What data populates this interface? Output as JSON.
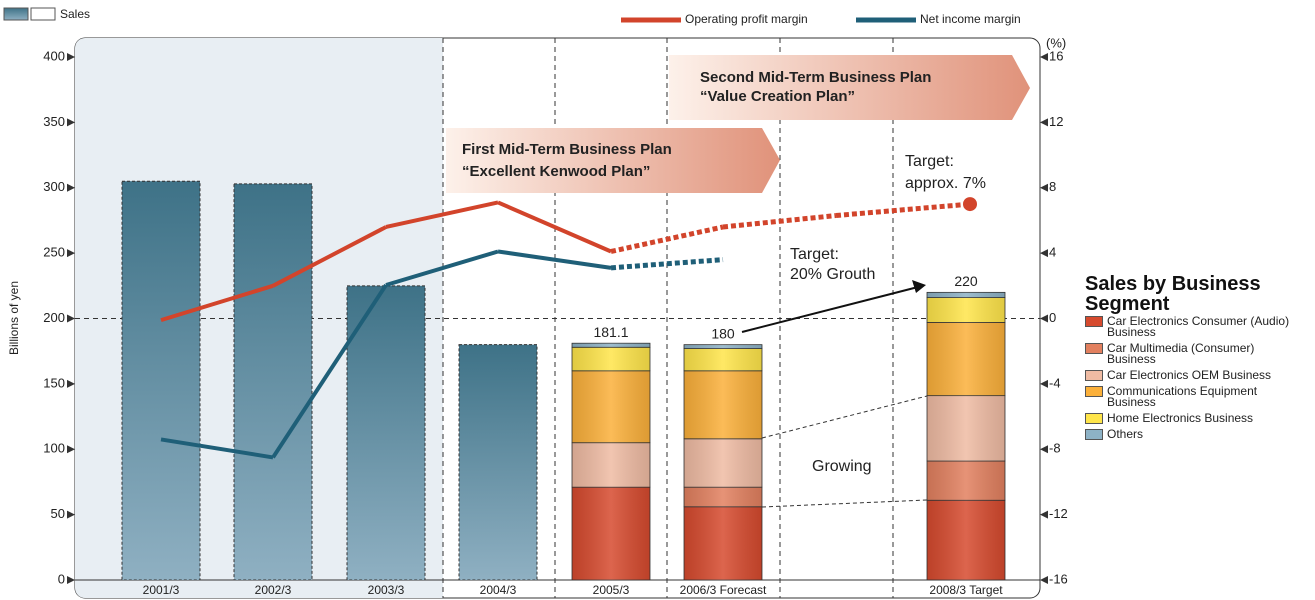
{
  "chart_data": {
    "type": "bar",
    "categories": [
      "2001/3",
      "2002/3",
      "2003/3",
      "2004/3",
      "2005/3",
      "2006/3 Forecast",
      null,
      "2008/3 Target"
    ],
    "ylim": [
      0,
      400
    ],
    "yticks": [
      0,
      50,
      100,
      150,
      200,
      250,
      300,
      350,
      400
    ],
    "y2lim": [
      -16,
      16
    ],
    "y2ticks": [
      -16,
      -12,
      -8,
      -4,
      0,
      4,
      8,
      12,
      16
    ],
    "y_label": "Billions of yen",
    "y2_label": "(%)",
    "series": [
      {
        "name": "Sales",
        "color": "#3e7287",
        "values": [
          305,
          303,
          225,
          180,
          null,
          null,
          null,
          null
        ]
      },
      {
        "name": "Operating profit margin",
        "type": "line",
        "axis": "y2",
        "color": "#d2442b",
        "values": [
          -0.1,
          2.0,
          5.6,
          7.1,
          4.1,
          5.6,
          6.3,
          7.0
        ],
        "line_styles": [
          "solid",
          "solid",
          "solid",
          "solid",
          "dashed",
          "dashed",
          "dashed"
        ]
      },
      {
        "name": "Net income margin",
        "type": "line",
        "axis": "y2",
        "color": "#1f5f78",
        "values": [
          -7.4,
          -8.5,
          2.05,
          4.1,
          3.1,
          3.6,
          null,
          null
        ],
        "line_styles": [
          "solid",
          "solid",
          "solid",
          "solid",
          "dashed",
          null,
          null
        ]
      }
    ],
    "segments": {
      "title": "Sales by Business Segment",
      "series": [
        {
          "name": "Car Electronics Consumer (Audio) Business",
          "color": "#d64a2e",
          "values": [
            null,
            null,
            null,
            null,
            71,
            56,
            null,
            61
          ]
        },
        {
          "name": "Car Multimedia (Consumer) Business",
          "color": "#e2805f",
          "values": [
            null,
            null,
            null,
            null,
            0,
            15,
            null,
            30
          ]
        },
        {
          "name": "Car Electronics OEM Business",
          "color": "#efbba3",
          "values": [
            null,
            null,
            null,
            null,
            34,
            37,
            null,
            50
          ]
        },
        {
          "name": "Communications Equipment Business",
          "color": "#fbb03a",
          "values": [
            null,
            null,
            null,
            null,
            55,
            52,
            null,
            56
          ]
        },
        {
          "name": "Home Electronics Business",
          "color": "#ffe54a",
          "values": [
            null,
            null,
            null,
            null,
            18,
            17,
            null,
            19
          ]
        },
        {
          "name": "Others",
          "color": "#8db2c6",
          "values": [
            null,
            null,
            null,
            null,
            3.1,
            3,
            null,
            4
          ]
        }
      ],
      "totals": [
        null,
        null,
        null,
        null,
        181.1,
        180,
        null,
        220
      ]
    },
    "annotations": [
      "First Mid-Term Business Plan",
      "“Excellent Kenwood Plan”",
      "Second Mid-Term Business Plan",
      "“Value Creation Plan”",
      "Target:",
      "approx. 7%",
      "Target:",
      "20% Grouth",
      "Growing"
    ]
  }
}
